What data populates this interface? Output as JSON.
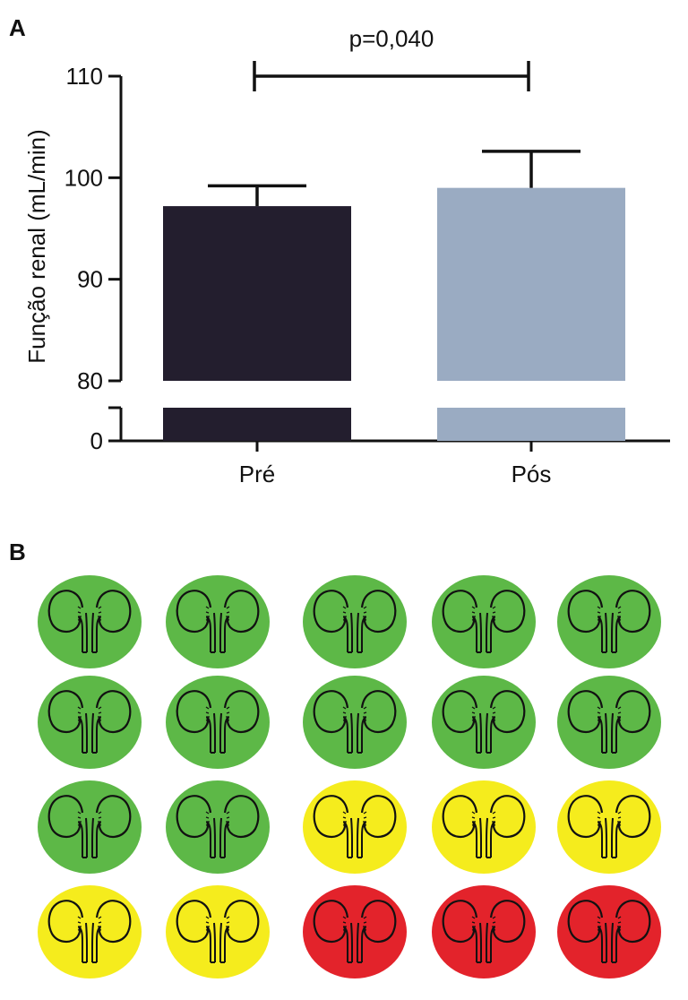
{
  "panel_a_label": "A",
  "panel_b_label": "B",
  "chart_data": [
    {
      "type": "bar",
      "ylabel": "Função renal (mL/min)",
      "xlabel": "",
      "categories": [
        "Pré",
        "Pós"
      ],
      "values": [
        97.2,
        99.0
      ],
      "errors": [
        2.0,
        3.6
      ],
      "bar_colors": [
        "#231e2e",
        "#9aabc2"
      ],
      "ylim": [
        0,
        110
      ],
      "y_axis_break": {
        "from": 0,
        "to": 80
      },
      "yticks": [
        0,
        80,
        90,
        100,
        110
      ],
      "annotation": "p=0,040",
      "grid": false
    }
  ],
  "kidney_grid": {
    "rows": [
      [
        "green",
        "green",
        "green",
        "green",
        "green"
      ],
      [
        "green",
        "green",
        "green",
        "green",
        "green"
      ],
      [
        "green",
        "green",
        "yellow",
        "yellow",
        "yellow"
      ],
      [
        "yellow",
        "yellow",
        "red",
        "red",
        "red"
      ]
    ],
    "colors": {
      "green": "#5db847",
      "yellow": "#f5ec1d",
      "red": "#e3232b"
    },
    "icon": "kidneys-icon"
  }
}
